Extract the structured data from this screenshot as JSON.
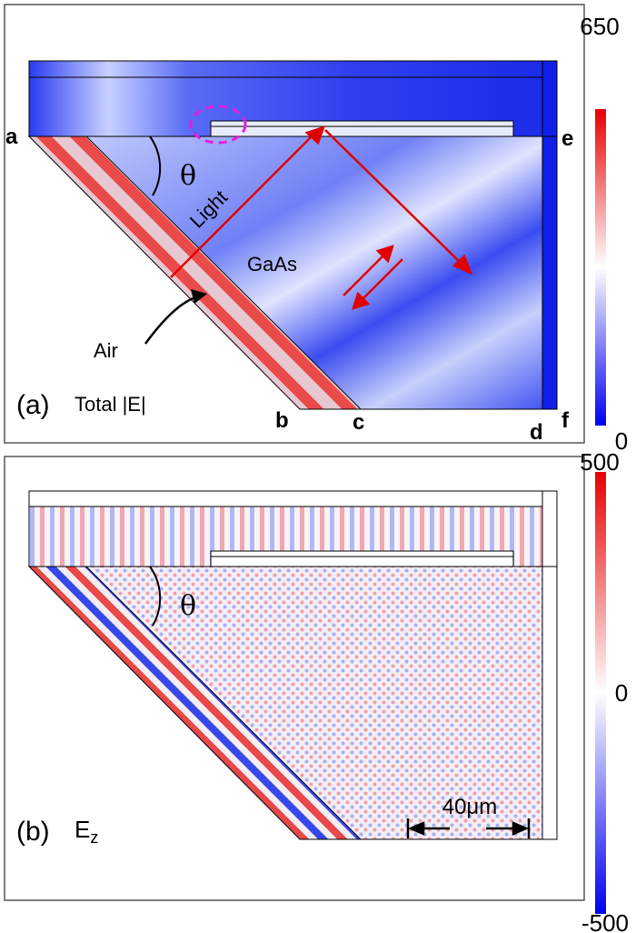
{
  "panel_a": {
    "tag": "(a)",
    "title": "Total |E|",
    "corner_labels": {
      "a": "a",
      "b": "b",
      "c": "c",
      "d": "d",
      "e": "e",
      "f": "f"
    },
    "angle_label": "θ",
    "light_label": "Light",
    "material_label": "GaAs",
    "air_label": "Air",
    "colorbar": {
      "max": "650",
      "min": "0",
      "colormap": [
        "#0000ff",
        "#ffffff",
        "#ff0000"
      ]
    },
    "ray_color": "#e00000",
    "highlight_color": "#e020e0"
  },
  "panel_b": {
    "tag": "(b)",
    "title_main": "E",
    "title_sub": "z",
    "angle_label": "θ",
    "scale_label": "40μm",
    "colorbar": {
      "max": "500",
      "mid": "0",
      "min": "-500",
      "colormap": [
        "#0000ff",
        "#ffffff",
        "#ff0000"
      ]
    }
  }
}
